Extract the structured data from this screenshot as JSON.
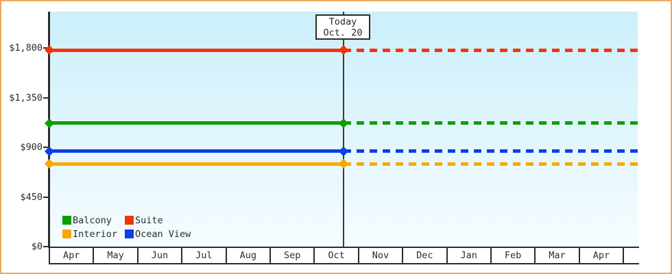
{
  "frame": {
    "border_color": "#eda75c",
    "background": "#ffffff"
  },
  "colors": {
    "plot_bg_top": "#cbeffa",
    "plot_bg_bottom": "#f6fcff",
    "axis": "#2b2b2b",
    "text": "#2b2b2b",
    "today_line": "#3a3a3a",
    "today_box_bg": "#ffffff"
  },
  "chart_data": {
    "type": "line",
    "title": "",
    "description": "Cabin price history by category: flat prices, solid line before today, dotted projection after today",
    "x_categories": [
      "Apr",
      "May",
      "Jun",
      "Jul",
      "Aug",
      "Sep",
      "Oct",
      "Nov",
      "Dec",
      "Jan",
      "Feb",
      "Mar",
      "Apr"
    ],
    "y_axis": {
      "tick_labels": [
        "$0",
        "$450",
        "$900",
        "$1,350",
        "$1,800"
      ],
      "tick_values": [
        0,
        450,
        900,
        1350,
        1800
      ],
      "ylim": [
        0,
        2130
      ],
      "grid": false
    },
    "today_marker": {
      "title": "Today",
      "date": "Oct. 20",
      "month": "Oct"
    },
    "series": [
      {
        "name": "Suite",
        "color": "#f5330a",
        "value": 1780,
        "style_before_today": "solid",
        "style_after_today": "dashed",
        "marker": "diamond"
      },
      {
        "name": "Balcony",
        "color": "#0f9d00",
        "value": 1120,
        "style_before_today": "solid",
        "style_after_today": "dashed",
        "marker": "diamond"
      },
      {
        "name": "Ocean View",
        "color": "#0b3fe8",
        "value": 865,
        "style_before_today": "solid",
        "style_after_today": "dashed",
        "marker": "diamond"
      },
      {
        "name": "Interior",
        "color": "#f8a800",
        "value": 750,
        "style_before_today": "solid",
        "style_after_today": "dashed",
        "marker": "diamond"
      }
    ],
    "legend": {
      "position": "bottom-left",
      "items": [
        {
          "label": "Balcony",
          "color": "#0f9d00"
        },
        {
          "label": "Suite",
          "color": "#f5330a"
        },
        {
          "label": "Interior",
          "color": "#f8a800"
        },
        {
          "label": "Ocean View",
          "color": "#0b3fe8"
        }
      ]
    }
  }
}
